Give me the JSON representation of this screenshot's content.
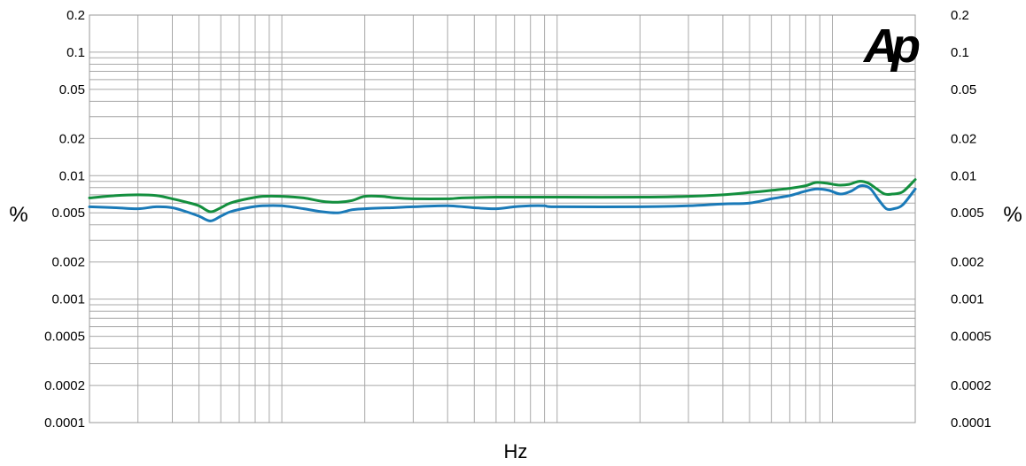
{
  "chart_data": {
    "type": "line",
    "title": "",
    "xlabel": "Hz",
    "ylabel_left": "%",
    "ylabel_right": "%",
    "y_scale": "log",
    "x_scale": "log",
    "ylim": [
      0.0001,
      0.2
    ],
    "xlim": [
      20,
      20000
    ],
    "grid": true,
    "legend": "none",
    "y_ticks": [
      {
        "value": 0.2,
        "label": "0.2"
      },
      {
        "value": 0.1,
        "label": "0.1"
      },
      {
        "value": 0.05,
        "label": "0.05"
      },
      {
        "value": 0.02,
        "label": "0.02"
      },
      {
        "value": 0.01,
        "label": "0.01"
      },
      {
        "value": 0.005,
        "label": "0.005"
      },
      {
        "value": 0.002,
        "label": "0.002"
      },
      {
        "value": 0.001,
        "label": "0.001"
      },
      {
        "value": 0.0005,
        "label": "0.0005"
      },
      {
        "value": 0.0002,
        "label": "0.0002"
      },
      {
        "value": 0.0001,
        "label": "0.0001"
      }
    ],
    "y_grid_values": [
      0.2,
      0.1,
      0.09,
      0.08,
      0.07,
      0.06,
      0.05,
      0.04,
      0.03,
      0.02,
      0.01,
      0.009,
      0.008,
      0.007,
      0.006,
      0.005,
      0.004,
      0.003,
      0.002,
      0.001,
      0.0009,
      0.0008,
      0.0007,
      0.0006,
      0.0005,
      0.0004,
      0.0003,
      0.0002,
      0.0001
    ],
    "x_grid_values": [
      20,
      30,
      40,
      50,
      60,
      70,
      80,
      90,
      100,
      200,
      300,
      400,
      500,
      600,
      700,
      800,
      900,
      1000,
      2000,
      3000,
      4000,
      5000,
      6000,
      7000,
      8000,
      9000,
      10000,
      20000
    ],
    "series": [
      {
        "color": "#138f3e",
        "points": [
          [
            20,
            0.0066
          ],
          [
            25,
            0.0069
          ],
          [
            30,
            0.007
          ],
          [
            35,
            0.0069
          ],
          [
            40,
            0.0065
          ],
          [
            45,
            0.0061
          ],
          [
            50,
            0.0057
          ],
          [
            55,
            0.0051
          ],
          [
            60,
            0.0055
          ],
          [
            65,
            0.006
          ],
          [
            75,
            0.0065
          ],
          [
            85,
            0.0068
          ],
          [
            100,
            0.0068
          ],
          [
            120,
            0.0066
          ],
          [
            140,
            0.0062
          ],
          [
            160,
            0.0061
          ],
          [
            180,
            0.0063
          ],
          [
            200,
            0.0068
          ],
          [
            230,
            0.0068
          ],
          [
            260,
            0.0066
          ],
          [
            300,
            0.0065
          ],
          [
            400,
            0.0065
          ],
          [
            450,
            0.0066
          ],
          [
            600,
            0.0067
          ],
          [
            800,
            0.0067
          ],
          [
            1000,
            0.0067
          ],
          [
            2000,
            0.0067
          ],
          [
            3000,
            0.0068
          ],
          [
            4000,
            0.007
          ],
          [
            5000,
            0.0073
          ],
          [
            6000,
            0.0076
          ],
          [
            7000,
            0.0079
          ],
          [
            8000,
            0.0083
          ],
          [
            8700,
            0.0088
          ],
          [
            9500,
            0.0087
          ],
          [
            10500,
            0.0084
          ],
          [
            11500,
            0.0085
          ],
          [
            12500,
            0.009
          ],
          [
            13500,
            0.0087
          ],
          [
            14500,
            0.0078
          ],
          [
            15500,
            0.0071
          ],
          [
            16500,
            0.0071
          ],
          [
            18000,
            0.0074
          ],
          [
            20000,
            0.0093
          ]
        ]
      },
      {
        "color": "#1a7ab8",
        "points": [
          [
            20,
            0.0056
          ],
          [
            25,
            0.0055
          ],
          [
            30,
            0.0054
          ],
          [
            35,
            0.0056
          ],
          [
            40,
            0.0055
          ],
          [
            45,
            0.0051
          ],
          [
            50,
            0.0047
          ],
          [
            55,
            0.0043
          ],
          [
            60,
            0.0047
          ],
          [
            65,
            0.0051
          ],
          [
            75,
            0.0055
          ],
          [
            85,
            0.0057
          ],
          [
            100,
            0.0057
          ],
          [
            120,
            0.0054
          ],
          [
            140,
            0.0051
          ],
          [
            160,
            0.005
          ],
          [
            180,
            0.0053
          ],
          [
            200,
            0.0054
          ],
          [
            250,
            0.0055
          ],
          [
            300,
            0.0056
          ],
          [
            400,
            0.0057
          ],
          [
            500,
            0.0055
          ],
          [
            600,
            0.0054
          ],
          [
            700,
            0.0056
          ],
          [
            800,
            0.0057
          ],
          [
            900,
            0.0057
          ],
          [
            1000,
            0.0056
          ],
          [
            2000,
            0.0056
          ],
          [
            3000,
            0.0057
          ],
          [
            4000,
            0.0059
          ],
          [
            5000,
            0.006
          ],
          [
            6000,
            0.0065
          ],
          [
            7000,
            0.0069
          ],
          [
            8000,
            0.0075
          ],
          [
            8800,
            0.0078
          ],
          [
            9700,
            0.0076
          ],
          [
            10700,
            0.0071
          ],
          [
            11700,
            0.0075
          ],
          [
            12700,
            0.0083
          ],
          [
            13700,
            0.0079
          ],
          [
            14700,
            0.0064
          ],
          [
            15700,
            0.0054
          ],
          [
            16700,
            0.0054
          ],
          [
            18000,
            0.0058
          ],
          [
            20000,
            0.0078
          ]
        ]
      }
    ]
  },
  "logo": {
    "text": "Ap",
    "color": "#1f63b0",
    "icon": "audio-precision-logo"
  }
}
